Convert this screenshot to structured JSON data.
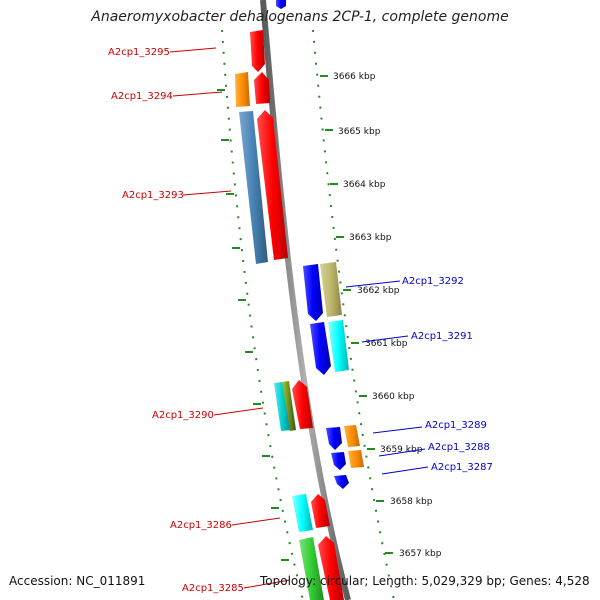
{
  "title": "Anaeromyxobacter dehalogenans 2CP-1, complete genome",
  "footer": {
    "accession": "Accession: NC_011891",
    "summary": "Topology: circular; Length: 5,029,329 bp; Genes: 4,528"
  },
  "scale_labels": [
    "3666 kbp",
    "3665 kbp",
    "3664 kbp",
    "3663 kbp",
    "3662 kbp",
    "3661 kbp",
    "3660 kbp",
    "3659 kbp",
    "3658 kbp",
    "3657 kbp"
  ],
  "colors": {
    "forward_strand_label": "#cc0000",
    "reverse_strand_label": "#0000cc",
    "genome_line": "#888888",
    "tick_marks": "#228b22"
  },
  "genes_forward": [
    {
      "label": "A2cp1_3295",
      "color": "#ff0000"
    },
    {
      "label": "A2cp1_3294",
      "color": "#ff8c00"
    },
    {
      "label": "A2cp1_3293",
      "color": "#4682b4"
    },
    {
      "label": "A2cp1_3290",
      "color": "#00ced1"
    },
    {
      "label": "A2cp1_3286",
      "color": "#00ffff"
    },
    {
      "label": "A2cp1_3285",
      "color": "#32cd32"
    }
  ],
  "genes_reverse": [
    {
      "label": "A2cp1_3292",
      "color": "#bdb76b"
    },
    {
      "label": "A2cp1_3291",
      "color": "#00ffff"
    },
    {
      "label": "A2cp1_3289",
      "color": "#ff8c00"
    },
    {
      "label": "A2cp1_3288",
      "color": "#ff8c00"
    },
    {
      "label": "A2cp1_3287",
      "color": "#0000ff"
    }
  ]
}
